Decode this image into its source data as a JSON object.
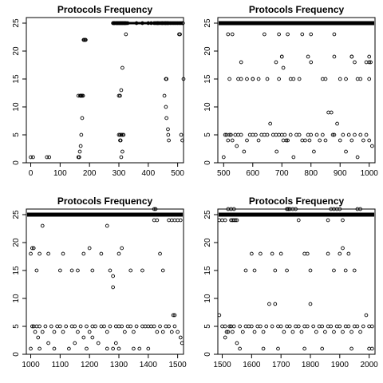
{
  "chart_data": [
    {
      "type": "scatter",
      "title": "Protocols Frequency",
      "xlabel": "",
      "ylabel": "",
      "xlim": [
        -15,
        520
      ],
      "ylim": [
        0,
        26
      ],
      "xticks": [
        0,
        100,
        200,
        300,
        400,
        500
      ],
      "yticks": [
        0,
        5,
        10,
        15,
        20,
        25
      ],
      "grid": false,
      "series": [
        {
          "x": [
            0,
            8,
            55,
            63,
            162,
            165,
            167,
            170,
            172,
            175,
            162,
            168,
            170,
            172,
            175,
            178,
            180,
            182,
            185,
            187,
            280,
            282,
            284,
            286,
            290,
            292,
            295,
            297,
            300,
            302,
            305,
            307,
            310,
            312,
            315,
            318,
            320,
            322,
            325,
            300,
            304,
            308,
            312,
            316,
            304,
            306,
            300,
            304,
            308,
            312,
            308,
            312,
            324,
            330,
            360,
            380,
            400,
            410,
            420,
            425,
            430,
            432,
            435,
            440,
            445,
            448,
            450,
            455,
            458,
            460,
            464,
            466,
            470,
            475,
            480,
            485,
            490,
            495,
            500,
            505,
            510,
            515,
            518,
            460,
            462,
            455,
            460,
            462,
            467,
            468,
            470,
            505,
            508,
            512,
            516,
            520
          ],
          "y": [
            1,
            1,
            1,
            1,
            1,
            1,
            2,
            3,
            5,
            8,
            12,
            12,
            12,
            12,
            12,
            12,
            22,
            22,
            22,
            22,
            25,
            25,
            25,
            25,
            25,
            25,
            25,
            25,
            25,
            25,
            25,
            25,
            25,
            25,
            25,
            25,
            25,
            25,
            25,
            5,
            5,
            5,
            5,
            5,
            4,
            4,
            12,
            12,
            13,
            17,
            1,
            2,
            23,
            25,
            25,
            25,
            25,
            25,
            25,
            25,
            25,
            25,
            25,
            25,
            25,
            25,
            25,
            25,
            25,
            25,
            25,
            25,
            25,
            25,
            25,
            25,
            25,
            25,
            25,
            25,
            25,
            25,
            25,
            15,
            15,
            12,
            10,
            8,
            6,
            5,
            4,
            23,
            23,
            5,
            4,
            15
          ]
        }
      ]
    },
    {
      "type": "scatter",
      "title": "Protocols Frequency",
      "xlabel": "",
      "ylabel": "",
      "xlim": [
        480,
        1020
      ],
      "ylim": [
        0,
        26
      ],
      "xticks": [
        500,
        600,
        700,
        800,
        900,
        1000
      ],
      "yticks": [
        0,
        5,
        10,
        15,
        20,
        25
      ],
      "grid": false,
      "series": [
        {
          "x": [
            500,
            505,
            510,
            515,
            520,
            525,
            530,
            540,
            545,
            550,
            560,
            570,
            580,
            590,
            600,
            610,
            620,
            630,
            640,
            650,
            660,
            670,
            680,
            682,
            690,
            700,
            705,
            710,
            715,
            720,
            730,
            740,
            750,
            760,
            770,
            780,
            790,
            795,
            800,
            810,
            820,
            830,
            840,
            850,
            860,
            870,
            875,
            880,
            890,
            900,
            910,
            920,
            930,
            940,
            950,
            960,
            970,
            980,
            990,
            1000,
            1010,
            530,
            560,
            580,
            600,
            650,
            680,
            700,
            705,
            760,
            790,
            800,
            880,
            920,
            940,
            950,
            960,
            990,
            1000,
            1005,
            520,
            550,
            600,
            640,
            690,
            700,
            720,
            740,
            800,
            840,
            880,
            900,
            970,
            1000,
            515,
            560,
            620,
            690,
            730,
            770,
            850,
            940,
            1000
          ],
          "y": [
            1,
            5,
            5,
            4,
            5,
            5,
            4,
            5,
            3,
            5,
            5,
            2,
            4,
            5,
            5,
            5,
            4,
            5,
            5,
            5,
            7,
            5,
            5,
            2,
            5,
            5,
            4,
            5,
            4,
            4,
            5,
            1,
            5,
            5,
            4,
            4,
            5,
            4,
            5,
            2,
            5,
            4,
            5,
            4,
            9,
            9,
            5,
            5,
            7,
            4,
            5,
            2,
            5,
            4,
            5,
            1,
            5,
            4,
            5,
            4,
            3,
            23,
            18,
            15,
            15,
            15,
            18,
            19,
            17,
            15,
            19,
            18,
            19,
            15,
            19,
            18,
            15,
            18,
            19,
            18,
            15,
            15,
            15,
            23,
            15,
            19,
            23,
            15,
            23,
            15,
            23,
            15,
            15,
            15,
            23,
            15,
            15,
            23,
            15,
            23,
            15,
            19,
            18
          ]
        }
      ]
    },
    {
      "type": "scatter",
      "title": "Protocols Frequency",
      "xlabel": "",
      "ylabel": "",
      "xlim": [
        985,
        1520
      ],
      "ylim": [
        0,
        26
      ],
      "xticks": [
        1000,
        1100,
        1200,
        1300,
        1400,
        1500
      ],
      "yticks": [
        0,
        5,
        10,
        15,
        20,
        25
      ],
      "grid": false,
      "series": [
        {
          "x": [
            1000,
            1005,
            1010,
            1015,
            1020,
            1025,
            1030,
            1040,
            1050,
            1060,
            1070,
            1080,
            1090,
            1100,
            1110,
            1120,
            1130,
            1140,
            1150,
            1160,
            1170,
            1180,
            1190,
            1200,
            1210,
            1220,
            1230,
            1240,
            1250,
            1260,
            1270,
            1280,
            1290,
            1300,
            1310,
            1320,
            1330,
            1340,
            1350,
            1360,
            1370,
            1380,
            1390,
            1400,
            1410,
            1420,
            1430,
            1440,
            1450,
            1460,
            1470,
            1480,
            1490,
            1500,
            1510,
            1515,
            1000,
            1010,
            1020,
            1030,
            1060,
            1100,
            1110,
            1140,
            1180,
            1200,
            1210,
            1240,
            1270,
            1280,
            1300,
            1310,
            1340,
            1380,
            1420,
            1440,
            1450,
            1470,
            1480,
            1490,
            1500,
            1510,
            1005,
            1040,
            1160,
            1260,
            1280,
            1420,
            1425,
            1430,
            1485,
            1490,
            1030,
            1080,
            1150,
            1190,
            1210,
            1260,
            1290,
            1300,
            1350,
            1400
          ],
          "y": [
            1,
            5,
            5,
            4,
            5,
            3,
            5,
            4,
            5,
            2,
            5,
            4,
            5,
            5,
            4,
            5,
            1,
            5,
            5,
            4,
            5,
            3,
            5,
            4,
            5,
            5,
            2,
            5,
            5,
            4,
            5,
            1,
            5,
            5,
            5,
            4,
            5,
            5,
            4,
            5,
            1,
            5,
            5,
            5,
            5,
            5,
            4,
            5,
            4,
            5,
            5,
            4,
            5,
            4,
            3,
            2,
            18,
            19,
            15,
            18,
            18,
            15,
            18,
            15,
            18,
            19,
            15,
            18,
            15,
            12,
            18,
            19,
            15,
            15,
            24,
            18,
            15,
            24,
            24,
            24,
            24,
            24,
            19,
            23,
            15,
            23,
            14,
            26,
            26,
            24,
            7,
            7,
            1,
            1,
            2,
            1,
            3,
            1,
            2,
            1,
            1,
            1
          ]
        }
      ]
    },
    {
      "type": "scatter",
      "title": "Protocols Frequency",
      "xlabel": "",
      "ylabel": "",
      "xlim": [
        1485,
        2020
      ],
      "ylim": [
        0,
        26
      ],
      "xticks": [
        1500,
        1600,
        1700,
        1800,
        1900,
        2000
      ],
      "yticks": [
        0,
        5,
        10,
        15,
        20,
        25
      ],
      "grid": false,
      "series": [
        {
          "x": [
            1490,
            1500,
            1510,
            1515,
            1520,
            1525,
            1530,
            1535,
            1540,
            1550,
            1560,
            1570,
            1580,
            1590,
            1600,
            1610,
            1620,
            1630,
            1640,
            1650,
            1660,
            1670,
            1680,
            1690,
            1700,
            1710,
            1720,
            1730,
            1740,
            1750,
            1760,
            1770,
            1780,
            1790,
            1800,
            1810,
            1820,
            1830,
            1840,
            1850,
            1860,
            1870,
            1880,
            1890,
            1900,
            1910,
            1920,
            1930,
            1940,
            1950,
            1960,
            1970,
            1980,
            1990,
            2000,
            2010,
            1490,
            1500,
            1510,
            1520,
            1530,
            1540,
            1550,
            1530,
            1535,
            1540,
            1545,
            1720,
            1725,
            1730,
            1740,
            1750,
            1760,
            1860,
            1870,
            1880,
            1890,
            1900,
            1910,
            1960,
            1970,
            1600,
            1630,
            1670,
            1700,
            1780,
            1790,
            1860,
            1900,
            1910,
            1930,
            1580,
            1610,
            1680,
            1720,
            1800,
            1880,
            1920,
            1950,
            2010,
            1510,
            1560,
            1640,
            1690,
            1780,
            1840,
            1940,
            2000
          ],
          "y": [
            7,
            5,
            5,
            4,
            4,
            5,
            5,
            4,
            5,
            2,
            5,
            4,
            5,
            5,
            5,
            4,
            5,
            5,
            4,
            5,
            9,
            5,
            9,
            5,
            5,
            4,
            5,
            5,
            4,
            5,
            5,
            4,
            5,
            5,
            9,
            5,
            4,
            5,
            5,
            4,
            5,
            5,
            4,
            5,
            5,
            4,
            5,
            5,
            4,
            5,
            5,
            4,
            5,
            7,
            5,
            5,
            24,
            24,
            24,
            26,
            26,
            26,
            24,
            24,
            24,
            24,
            24,
            26,
            26,
            26,
            26,
            26,
            24,
            24,
            26,
            26,
            26,
            26,
            24,
            26,
            26,
            18,
            18,
            18,
            18,
            18,
            18,
            18,
            18,
            19,
            18,
            15,
            15,
            15,
            15,
            15,
            15,
            15,
            15,
            1,
            3,
            1,
            1,
            1,
            1,
            1,
            1,
            1
          ]
        }
      ]
    }
  ]
}
